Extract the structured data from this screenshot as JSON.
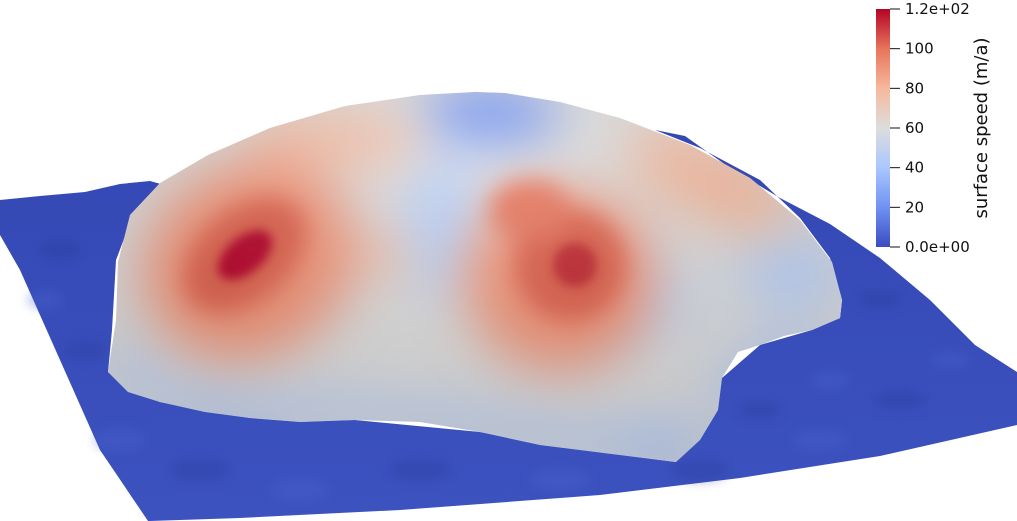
{
  "colorbar": {
    "title": "surface speed (m/a)",
    "colormap": "coolwarm",
    "stops": [
      "#3b4cc0",
      "#6f92f3",
      "#aac7fd",
      "#dddddd",
      "#f7b89c",
      "#e7745b",
      "#b40426"
    ],
    "range": [
      0,
      120
    ],
    "ticks": [
      {
        "value": 120,
        "label": "1.2e+02"
      },
      {
        "value": 100,
        "label": "100"
      },
      {
        "value": 80,
        "label": "80"
      },
      {
        "value": 60,
        "label": "60"
      },
      {
        "value": 40,
        "label": "40"
      },
      {
        "value": 20,
        "label": "20"
      },
      {
        "value": 0,
        "label": "0.0e+00"
      }
    ]
  },
  "scene": {
    "background": "#ffffff",
    "bed_color": "#3a4fb8",
    "low_speed_color": "#3b4cc0",
    "mid_speed_color": "#dddddd",
    "high_speed_color": "#b40426"
  }
}
